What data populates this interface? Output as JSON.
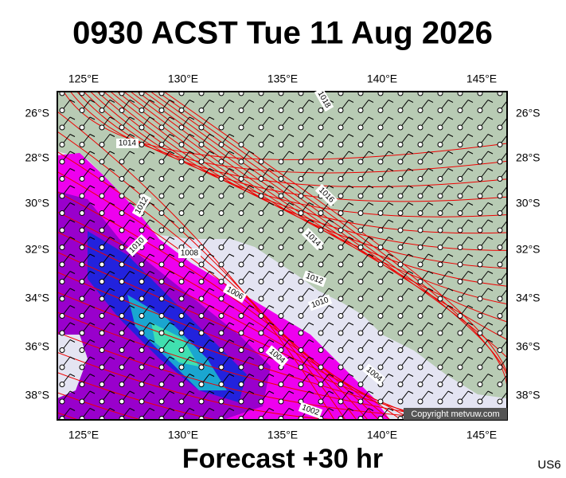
{
  "header": {
    "title": "0930 ACST Tue 11 Aug 2026"
  },
  "map": {
    "lon_labels": [
      "125°E",
      "130°E",
      "135°E",
      "140°E",
      "145°E"
    ],
    "lat_labels": [
      "26°S",
      "28°S",
      "30°S",
      "32°S",
      "34°S",
      "36°S",
      "38°S"
    ],
    "isobar_labels": [
      "1018",
      "1014",
      "1016",
      "1012",
      "1014",
      "1010",
      "1008",
      "1012",
      "1006",
      "1010",
      "1004",
      "1004",
      "1002"
    ],
    "copyright": "Copyright metvuw.com"
  },
  "footer": {
    "forecast": "Forecast +30 hr",
    "code": "US6"
  }
}
